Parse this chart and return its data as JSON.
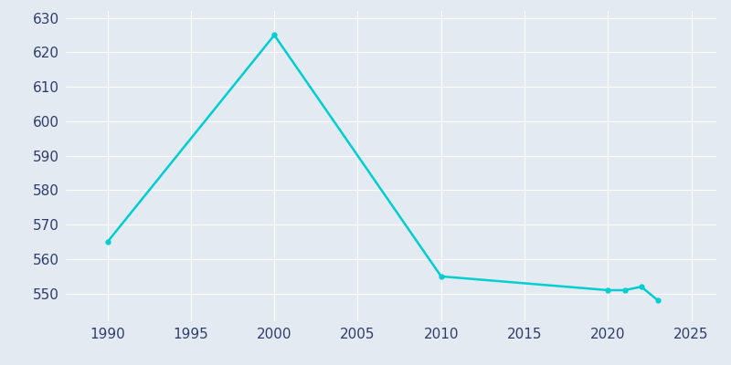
{
  "years": [
    1990,
    2000,
    2010,
    2020,
    2021,
    2022,
    2023
  ],
  "population": [
    565,
    625,
    555,
    551,
    551,
    552,
    548
  ],
  "line_color": "#00CED1",
  "marker_color": "#00CED1",
  "background_color": "#E4EAF2",
  "grid_color": "#ffffff",
  "text_color": "#2E3D6B",
  "ylim": [
    542,
    632
  ],
  "yticks": [
    550,
    560,
    570,
    580,
    590,
    600,
    610,
    620,
    630
  ],
  "xticks": [
    1990,
    1995,
    2000,
    2005,
    2010,
    2015,
    2020,
    2025
  ],
  "xlim": [
    1987.5,
    2026.5
  ],
  "line_width": 1.8,
  "marker_size": 3.5,
  "tick_fontsize": 11
}
